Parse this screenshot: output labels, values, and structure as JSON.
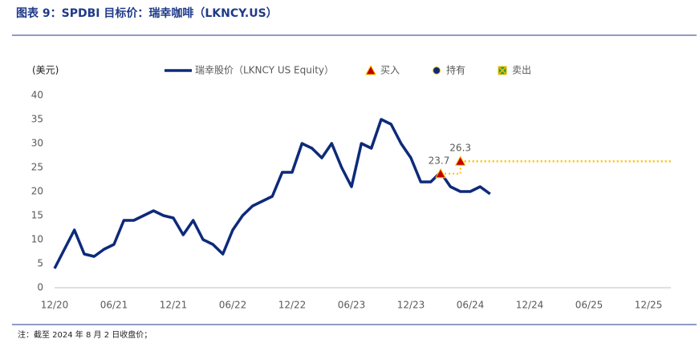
{
  "chart_data": {
    "type": "line",
    "title": "图表 9：SPDBI 目标价：瑞幸咖啡（LKNCY.US）",
    "y_label": "(美元)",
    "note": "注：截至 2024 年 8 月 2 日收盘价；",
    "categories": [
      "12/20",
      null,
      null,
      null,
      null,
      null,
      "06/21",
      null,
      null,
      null,
      null,
      null,
      "12/21",
      null,
      null,
      null,
      null,
      null,
      "06/22",
      null,
      null,
      null,
      null,
      null,
      "12/22",
      null,
      null,
      null,
      null,
      null,
      "06/23",
      null,
      null,
      null,
      null,
      null,
      "12/23",
      null,
      null,
      null,
      null,
      null,
      "06/24",
      null,
      null,
      null,
      null,
      null,
      "12/24",
      null,
      null,
      null,
      null,
      null,
      "06/25",
      null,
      null,
      null,
      null,
      null,
      "12/25"
    ],
    "series": [
      {
        "name": "瑞幸股价（LKNCY US Equity）",
        "color": "#0d2a7a",
        "marker": "line",
        "values": [
          4,
          8,
          12,
          7,
          6.5,
          8,
          9,
          14,
          14,
          15,
          16,
          15,
          14.5,
          11,
          14,
          10,
          9,
          7,
          12,
          15,
          17,
          18,
          19,
          24,
          24,
          30,
          29,
          27,
          30,
          25,
          21,
          30,
          29,
          35,
          34,
          30,
          27,
          22,
          22,
          24,
          21,
          20,
          20,
          21,
          19.5,
          null,
          null,
          null,
          null,
          null,
          null,
          null,
          null,
          null,
          null,
          null,
          null,
          null,
          null,
          null,
          null
        ]
      },
      {
        "name": "买入",
        "color": "#c00000",
        "marker": "triangle",
        "values": [
          null,
          null,
          null,
          null,
          null,
          null,
          null,
          null,
          null,
          null,
          null,
          null,
          null,
          null,
          null,
          null,
          null,
          null,
          null,
          null,
          null,
          null,
          null,
          null,
          null,
          null,
          null,
          null,
          null,
          null,
          null,
          null,
          null,
          null,
          null,
          null,
          null,
          null,
          null,
          23.7,
          null,
          26.3,
          null,
          null,
          null,
          null,
          null,
          null,
          null,
          null,
          null,
          null,
          null,
          null,
          null,
          null,
          null,
          null,
          null,
          null,
          null
        ]
      },
      {
        "name": "持有",
        "color": "#0d2a7a",
        "marker": "circle",
        "values": [
          null,
          null,
          null,
          null,
          null,
          null,
          null,
          null,
          null,
          null,
          null,
          null,
          null,
          null,
          null,
          null,
          null,
          null,
          null,
          null,
          null,
          null,
          null,
          null,
          null,
          null,
          null,
          null,
          null,
          null,
          null,
          null,
          null,
          null,
          null,
          null,
          null,
          null,
          null,
          null,
          null,
          null,
          null,
          null,
          null,
          null,
          null,
          null,
          null,
          null,
          null,
          null,
          null,
          null,
          null,
          null,
          null,
          null,
          null,
          null,
          null
        ]
      },
      {
        "name": "卖出",
        "color": "#2e9e3e",
        "marker": "square",
        "values": [
          null,
          null,
          null,
          null,
          null,
          null,
          null,
          null,
          null,
          null,
          null,
          null,
          null,
          null,
          null,
          null,
          null,
          null,
          null,
          null,
          null,
          null,
          null,
          null,
          null,
          null,
          null,
          null,
          null,
          null,
          null,
          null,
          null,
          null,
          null,
          null,
          null,
          null,
          null,
          null,
          null,
          null,
          null,
          null,
          null,
          null,
          null,
          null,
          null,
          null,
          null,
          null,
          null,
          null,
          null,
          null,
          null,
          null,
          null,
          null,
          null
        ]
      }
    ],
    "ylim": [
      0,
      40
    ],
    "yticks": [
      0,
      5,
      10,
      15,
      20,
      25,
      30,
      35,
      40
    ],
    "grid": false
  }
}
